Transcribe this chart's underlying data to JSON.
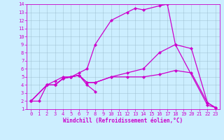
{
  "xlabel": "Windchill (Refroidissement éolien,°C)",
  "xlim": [
    -0.5,
    23.5
  ],
  "ylim": [
    1,
    14
  ],
  "xticks": [
    0,
    1,
    2,
    3,
    4,
    5,
    6,
    7,
    8,
    9,
    10,
    11,
    12,
    13,
    14,
    15,
    16,
    17,
    18,
    19,
    20,
    21,
    22,
    23
  ],
  "yticks": [
    1,
    2,
    3,
    4,
    5,
    6,
    7,
    8,
    9,
    10,
    11,
    12,
    13,
    14
  ],
  "bg_color": "#cceeff",
  "line_color": "#cc00cc",
  "grid_color": "#99bbcc",
  "line1_x": [
    0,
    1,
    2,
    3,
    4,
    5,
    6,
    7,
    8,
    10,
    12,
    13,
    14,
    16,
    17,
    18,
    22,
    23
  ],
  "line1_y": [
    2,
    2,
    4,
    4.5,
    5,
    5,
    5.5,
    6,
    9,
    12,
    13,
    13.5,
    13.3,
    13.8,
    14,
    9,
    1.5,
    1.2
  ],
  "line2_x": [
    0,
    2,
    3,
    4,
    5,
    6,
    7,
    8
  ],
  "line2_y": [
    2,
    4,
    4,
    4.8,
    5,
    5.2,
    4,
    3.2
  ],
  "line3_x": [
    0,
    2,
    3,
    4,
    5,
    6,
    7,
    8,
    10,
    12,
    14,
    16,
    18,
    20,
    22,
    23
  ],
  "line3_y": [
    2,
    4,
    4,
    4.8,
    5,
    5.2,
    4.3,
    4.3,
    5,
    5,
    5,
    5.3,
    5.8,
    5.5,
    1.8,
    1.2
  ],
  "line4_x": [
    0,
    2,
    3,
    4,
    5,
    6,
    7,
    8,
    10,
    12,
    14,
    16,
    18,
    20,
    22,
    23
  ],
  "line4_y": [
    2,
    4,
    4,
    4.8,
    5,
    5.2,
    4.3,
    4.3,
    5,
    5.5,
    6,
    8,
    9,
    8.5,
    1.8,
    1.2
  ],
  "tick_fontsize": 5,
  "xlabel_fontsize": 5.5,
  "line_width": 0.9,
  "marker_size": 2.2
}
